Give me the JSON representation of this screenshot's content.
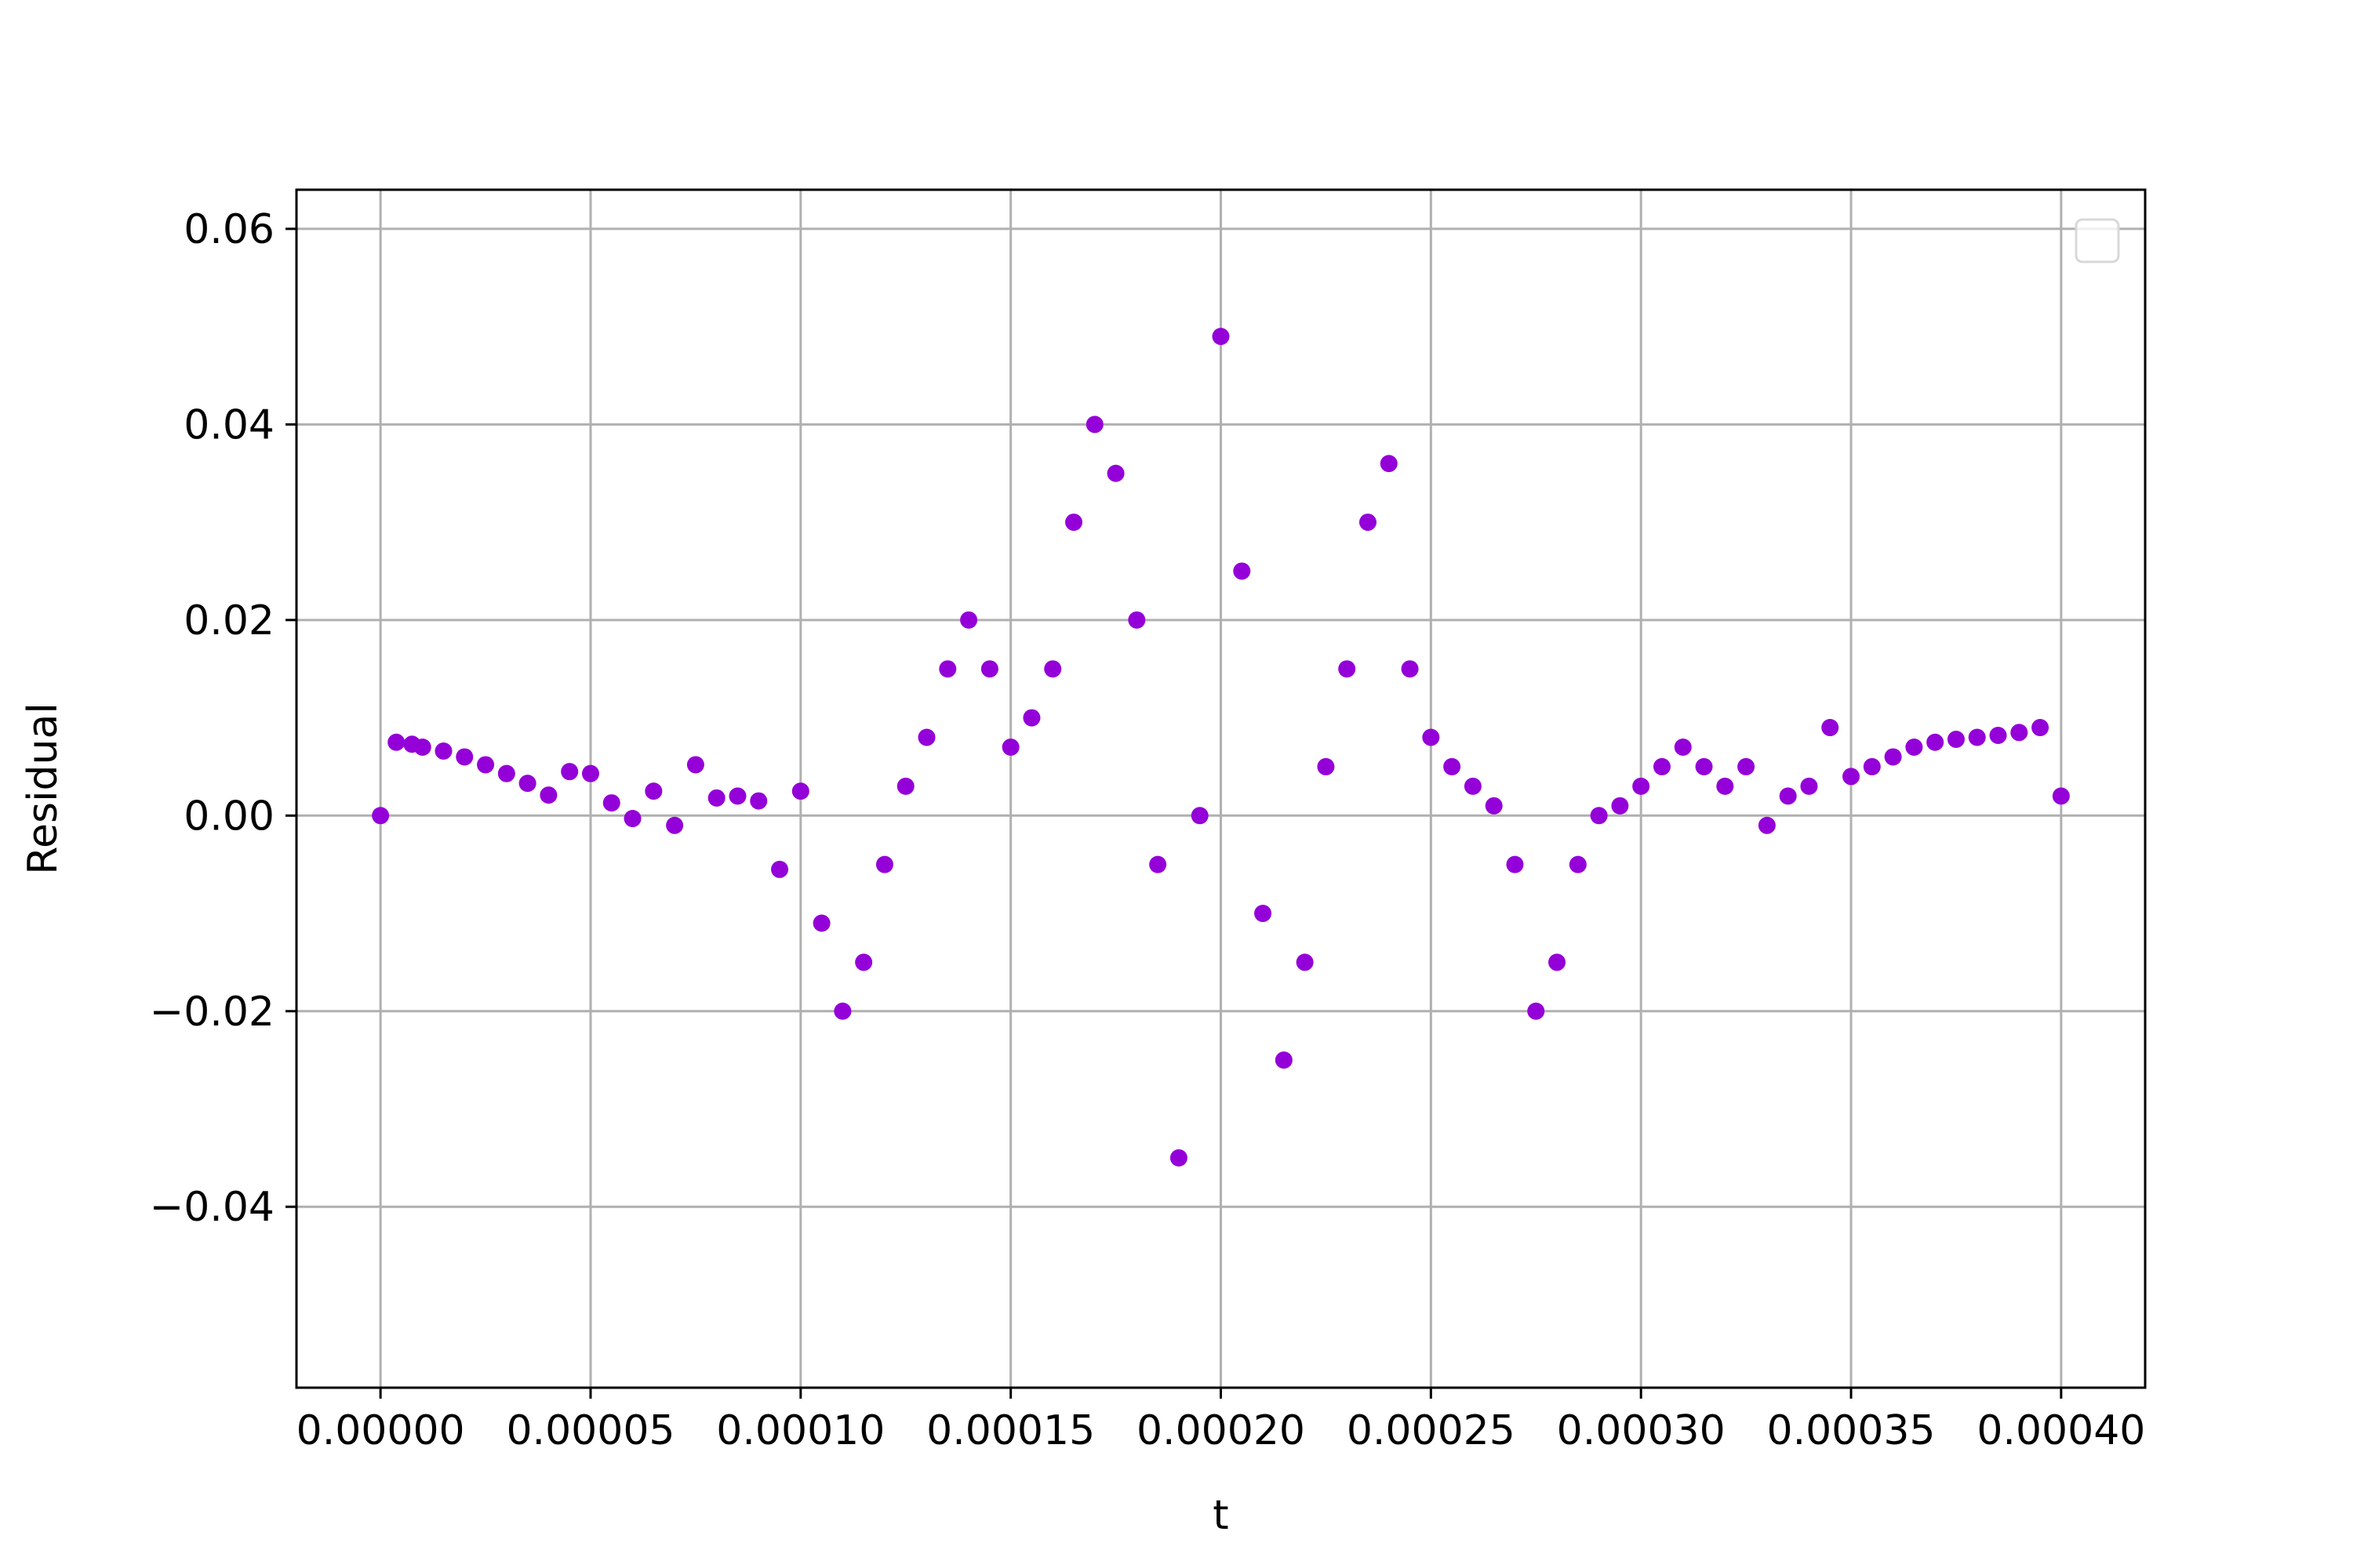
{
  "chart_data": {
    "type": "scatter",
    "title": "",
    "xlabel": "t",
    "ylabel": "Residual",
    "xlim": [
      -2e-05,
      0.00042
    ],
    "ylim": [
      -0.0585,
      0.064
    ],
    "x_ticks": [
      0.0,
      5e-05,
      0.0001,
      0.00015,
      0.0002,
      0.00025,
      0.0003,
      0.00035,
      0.0004
    ],
    "x_tick_labels": [
      "0.00000",
      "0.00005",
      "0.00010",
      "0.00015",
      "0.00020",
      "0.00025",
      "0.00030",
      "0.00035",
      "0.00040"
    ],
    "y_ticks": [
      -0.04,
      -0.02,
      0.0,
      0.02,
      0.04,
      0.06
    ],
    "y_tick_labels": [
      "−0.04",
      "−0.02",
      "0.00",
      "0.02",
      "0.04",
      "0.06"
    ],
    "grid": true,
    "legend": {
      "placement": "top-right",
      "entries": []
    },
    "colors": {
      "points": "#9400d8",
      "grid": "#b0b0b0",
      "axes": "#000000",
      "legend_frame": "#d8d8d8"
    },
    "series": [
      {
        "marker": "circle",
        "description_of_structure": "residual envelope",
        "x": [
          0.0,
          3.75e-06,
          7.5e-06,
          1e-05,
          1.5e-05,
          2e-05,
          2.5e-05,
          3e-05,
          3.5e-05,
          4e-05,
          4.5e-05,
          5e-05,
          5.5e-05,
          6e-05,
          6.5e-05,
          7e-05,
          7.5e-05,
          8e-05,
          8.5e-05,
          9e-05,
          9.5e-05,
          0.0001,
          0.000105,
          0.00011,
          0.000115,
          0.00012,
          0.000125,
          0.00013,
          0.000135,
          0.00014,
          0.000145,
          0.00015,
          0.000155,
          0.00016,
          0.000165,
          0.00017,
          0.000175,
          0.00018,
          0.000185,
          0.00019,
          0.000195,
          0.0002,
          0.000205,
          0.00021,
          0.000215,
          0.00022,
          0.000225,
          0.00023,
          0.000235,
          0.00024,
          0.000245,
          0.00025,
          0.000255,
          0.00026,
          0.000265,
          0.00027,
          0.000275,
          0.00028,
          0.000285,
          0.00029,
          0.000295,
          0.0003,
          0.000305,
          0.00031,
          0.000315,
          0.00032,
          0.000325,
          0.00033,
          0.000335,
          0.00034,
          0.000345,
          0.00035,
          0.000355,
          0.00036,
          0.000365,
          0.00037,
          0.000375,
          0.00038,
          0.000385,
          0.00039,
          0.000395,
          0.0004
        ],
        "y": [
          0.0,
          0.0075,
          0.0073,
          0.007,
          0.0066,
          0.006,
          0.0052,
          0.0043,
          0.0033,
          0.0021,
          0.0045,
          0.0043,
          0.0013,
          -0.0003,
          0.0025,
          -0.001,
          0.0052,
          0.0018,
          0.002,
          0.0015,
          -0.0055,
          0.0025,
          -0.011,
          -0.02,
          -0.015,
          -0.005,
          0.003,
          0.008,
          0.015,
          0.02,
          0.015,
          0.007,
          0.01,
          0.015,
          0.03,
          0.04,
          0.035,
          0.02,
          -0.005,
          -0.035,
          0.0,
          0.049,
          0.025,
          -0.01,
          -0.025,
          -0.015,
          0.005,
          0.015,
          0.03,
          0.036,
          0.015,
          0.008,
          0.005,
          0.003,
          0.001,
          -0.005,
          -0.02,
          -0.015,
          -0.005,
          0.0,
          0.001,
          0.003,
          0.005,
          0.007,
          0.005,
          0.003,
          0.005,
          -0.001,
          0.002,
          0.003,
          0.009,
          0.004,
          0.005,
          0.006,
          0.007,
          0.0075,
          0.0078,
          0.008,
          0.0082,
          0.0085,
          0.009,
          0.002
        ]
      }
    ]
  }
}
